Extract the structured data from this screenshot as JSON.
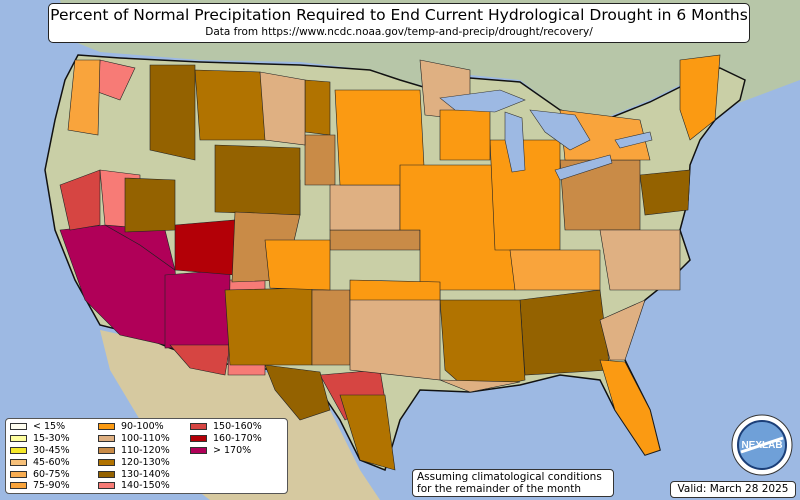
{
  "title": "Percent of Normal Precipitation Required to End Current Hydrological Drought in 6 Months",
  "subtitle": "Data from https://www.ncdc.noaa.gov/temp-and-precip/drought/recovery/",
  "note_line1": "Assuming climatological conditions",
  "note_line2": "for the remainder of the month",
  "valid": "Valid: March 28 2025",
  "logo_text": "NEXLAB",
  "colors": {
    "ocean": "#9db9e3",
    "land": "#c9cfa6",
    "mexico": "#d6c9a0",
    "canada": "#b7c6a8",
    "lake": "#9db9e3"
  },
  "legend": [
    {
      "label": "< 15%",
      "color": "#fffef0"
    },
    {
      "label": "15-30%",
      "color": "#ffffa0"
    },
    {
      "label": "30-45%",
      "color": "#f5e82a"
    },
    {
      "label": "45-60%",
      "color": "#f6c07a"
    },
    {
      "label": "60-75%",
      "color": "#f8ad52"
    },
    {
      "label": "75-90%",
      "color": "#f9a43c"
    },
    {
      "label": "90-100%",
      "color": "#fb9a12"
    },
    {
      "label": "100-110%",
      "color": "#dfb082"
    },
    {
      "label": "110-120%",
      "color": "#c98b47"
    },
    {
      "label": "120-130%",
      "color": "#b17300"
    },
    {
      "label": "130-140%",
      "color": "#946200"
    },
    {
      "label": "140-150%",
      "color": "#f77b76"
    },
    {
      "label": "150-160%",
      "color": "#d64542"
    },
    {
      "label": "160-170%",
      "color": "#b30007"
    },
    {
      "label": "> 170%",
      "color": "#b00058"
    }
  ]
}
